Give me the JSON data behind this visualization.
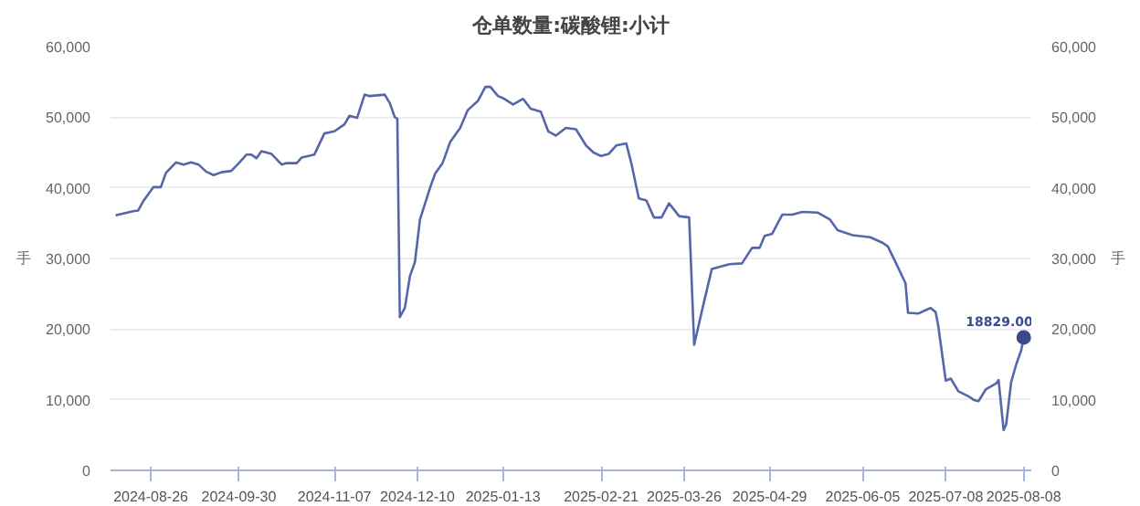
{
  "chart_data": {
    "type": "line",
    "title": "仓单数量:碳酸锂:小计",
    "ylabel": "手",
    "y2label": "手",
    "x": [
      "2024-08-12",
      "2024-08-19",
      "2024-08-21",
      "2024-08-23",
      "2024-08-27",
      "2024-08-30",
      "2024-09-01",
      "2024-09-05",
      "2024-09-08",
      "2024-09-11",
      "2024-09-14",
      "2024-09-17",
      "2024-09-20",
      "2024-09-23",
      "2024-09-27",
      "2024-09-30",
      "2024-10-03",
      "2024-10-05",
      "2024-10-07",
      "2024-10-09",
      "2024-10-13",
      "2024-10-17",
      "2024-10-19",
      "2024-10-23",
      "2024-10-25",
      "2024-10-30",
      "2024-11-03",
      "2024-11-07",
      "2024-11-11",
      "2024-11-13",
      "2024-11-16",
      "2024-11-19",
      "2024-11-21",
      "2024-11-27",
      "2024-11-29",
      "2024-12-01",
      "2024-12-02",
      "2024-12-03",
      "2024-12-05",
      "2024-12-07",
      "2024-12-09",
      "2024-12-11",
      "2024-12-15",
      "2024-12-17",
      "2024-12-20",
      "2024-12-23",
      "2024-12-27",
      "2024-12-30",
      "2025-01-03",
      "2025-01-06",
      "2025-01-08",
      "2025-01-11",
      "2025-01-13",
      "2025-01-17",
      "2025-01-21",
      "2025-01-24",
      "2025-01-28",
      "2025-01-31",
      "2025-02-03",
      "2025-02-07",
      "2025-02-11",
      "2025-02-15",
      "2025-02-18",
      "2025-02-21",
      "2025-02-24",
      "2025-02-27",
      "2025-03-03",
      "2025-03-05",
      "2025-03-08",
      "2025-03-11",
      "2025-03-14",
      "2025-03-17",
      "2025-03-20",
      "2025-03-24",
      "2025-03-28",
      "2025-03-30",
      "2025-04-03",
      "2025-04-06",
      "2025-04-13",
      "2025-04-18",
      "2025-04-22",
      "2025-04-25",
      "2025-04-27",
      "2025-04-30",
      "2025-05-04",
      "2025-05-08",
      "2025-05-12",
      "2025-05-18",
      "2025-05-23",
      "2025-05-26",
      "2025-06-01",
      "2025-06-08",
      "2025-06-13",
      "2025-06-15",
      "2025-06-18",
      "2025-06-22",
      "2025-06-23",
      "2025-06-27",
      "2025-07-02",
      "2025-07-04",
      "2025-07-05",
      "2025-07-08",
      "2025-07-10",
      "2025-07-13",
      "2025-07-17",
      "2025-07-19",
      "2025-07-21",
      "2025-07-24",
      "2025-07-28",
      "2025-07-29",
      "2025-07-31",
      "2025-08-01",
      "2025-08-03",
      "2025-08-05",
      "2025-08-07",
      "2025-08-08"
    ],
    "series": [
      {
        "color": "#5566aa",
        "values": [
          36100,
          36700,
          36800,
          38100,
          40100,
          40100,
          42100,
          43600,
          43300,
          43600,
          43300,
          42300,
          41800,
          42200,
          42400,
          43500,
          44700,
          44700,
          44200,
          45200,
          44800,
          43300,
          43500,
          43500,
          44300,
          44700,
          47700,
          48000,
          49000,
          50200,
          49900,
          53200,
          53000,
          53200,
          52000,
          50000,
          49800,
          21700,
          23000,
          27500,
          29500,
          35500,
          40000,
          42000,
          43500,
          46500,
          48500,
          51000,
          52300,
          54300,
          54300,
          53000,
          52700,
          51800,
          52600,
          51200,
          50800,
          48000,
          47400,
          48500,
          48300,
          46000,
          45000,
          44500,
          44800,
          46000,
          46300,
          43500,
          38500,
          38200,
          35800,
          35800,
          37800,
          36000,
          35800,
          17800,
          24000,
          28500,
          29200,
          29300,
          31500,
          31500,
          33200,
          33500,
          36200,
          36200,
          36600,
          36500,
          35500,
          34000,
          33300,
          33000,
          32200,
          31700,
          29500,
          26500,
          22300,
          22200,
          23000,
          22400,
          20500,
          12700,
          13000,
          11200,
          10500,
          10000,
          9800,
          11500,
          12300,
          12800,
          5700,
          6500,
          12500,
          15000,
          17000,
          18829
        ]
      }
    ],
    "xlim": [
      "2024-08-10",
      "2025-08-11"
    ],
    "xticks": [
      "2024-08-26",
      "2024-09-30",
      "2024-11-07",
      "2024-12-10",
      "2025-01-13",
      "2025-02-21",
      "2025-03-26",
      "2025-04-29",
      "2025-06-05",
      "2025-07-08",
      "2025-08-08"
    ],
    "ylim": [
      0,
      60000
    ],
    "yticks": [
      {
        "value": 0,
        "label": "0"
      },
      {
        "value": 10000,
        "label": "10,000"
      },
      {
        "value": 20000,
        "label": "20,000"
      },
      {
        "value": 30000,
        "label": "30,000"
      },
      {
        "value": 40000,
        "label": "40,000"
      },
      {
        "value": 50000,
        "label": "50,000"
      },
      {
        "value": 60000,
        "label": "60,000"
      }
    ],
    "y2lim": [
      0,
      60000
    ],
    "y2ticks": [
      {
        "value": 0,
        "label": "0"
      },
      {
        "value": 10000,
        "label": "10,000"
      },
      {
        "value": 20000,
        "label": "20,000"
      },
      {
        "value": 30000,
        "label": "30,000"
      },
      {
        "value": 40000,
        "label": "40,000"
      },
      {
        "value": 50000,
        "label": "50,000"
      },
      {
        "value": 60000,
        "label": "60,000"
      }
    ],
    "annotations": [
      {
        "text": "18829.00",
        "x": "2025-08-08",
        "y": 18829
      }
    ],
    "grid": "y",
    "marker": "none",
    "line_style": "solid"
  }
}
